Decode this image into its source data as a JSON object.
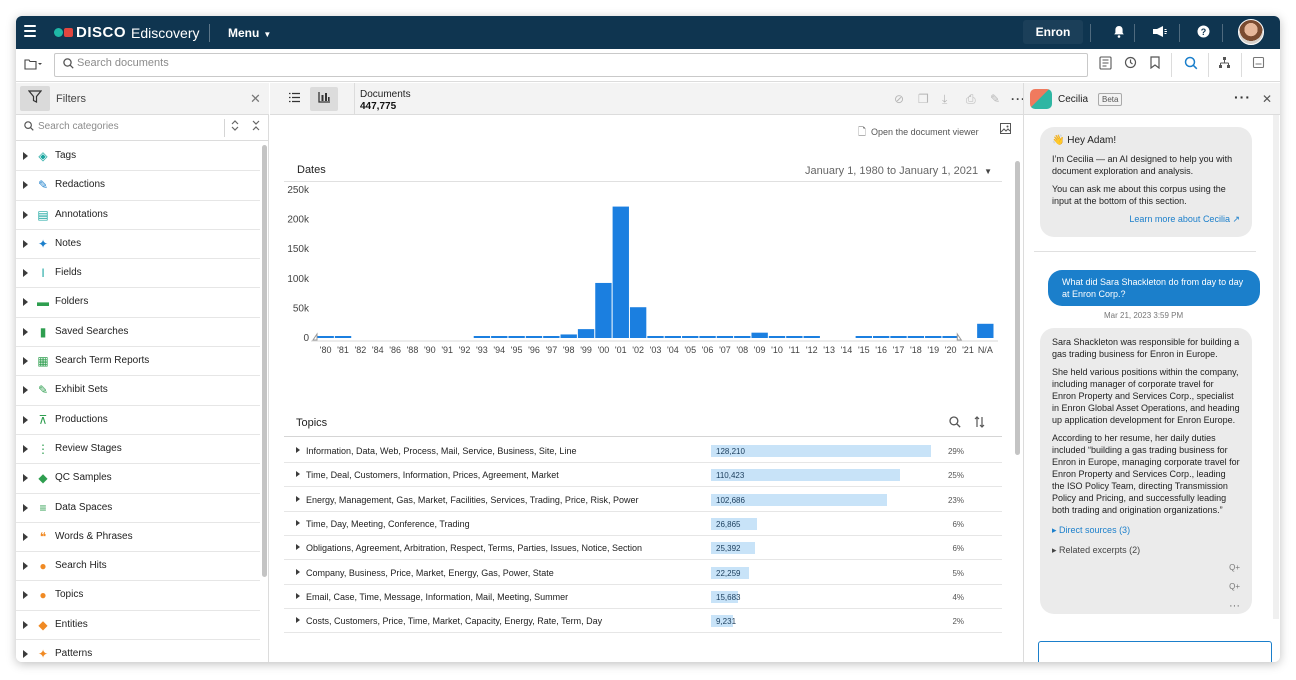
{
  "topbar": {
    "brand": "DISCO",
    "product": "Ediscovery",
    "menu_label": "Menu",
    "workspace": "Enron"
  },
  "search": {
    "placeholder": "Search documents"
  },
  "filters": {
    "title": "Filters",
    "search_placeholder": "Search categories",
    "categories": [
      {
        "label": "Tags",
        "icon": "tag-icon",
        "color": "#1aa6a0"
      },
      {
        "label": "Redactions",
        "icon": "redaction-icon",
        "color": "#1b7fcb"
      },
      {
        "label": "Annotations",
        "icon": "annotation-icon",
        "color": "#1aa6a0"
      },
      {
        "label": "Notes",
        "icon": "pin-icon",
        "color": "#1b7fcb"
      },
      {
        "label": "Fields",
        "icon": "text-cursor-icon",
        "color": "#1aa6a0"
      },
      {
        "label": "Folders",
        "icon": "folder-icon",
        "color": "#2e9e4f"
      },
      {
        "label": "Saved Searches",
        "icon": "bookmark-icon",
        "color": "#2e9e4f"
      },
      {
        "label": "Search Term Reports",
        "icon": "report-icon",
        "color": "#2e9e4f"
      },
      {
        "label": "Exhibit Sets",
        "icon": "exhibit-icon",
        "color": "#2e9e4f"
      },
      {
        "label": "Productions",
        "icon": "stamp-icon",
        "color": "#2e9e4f"
      },
      {
        "label": "Review Stages",
        "icon": "workflow-icon",
        "color": "#2e9e4f"
      },
      {
        "label": "QC Samples",
        "icon": "cube-icon",
        "color": "#2e9e4f"
      },
      {
        "label": "Data Spaces",
        "icon": "database-icon",
        "color": "#2e9e4f"
      },
      {
        "label": "Words & Phrases",
        "icon": "quote-icon",
        "color": "#f08a24"
      },
      {
        "label": "Search Hits",
        "icon": "search-hit-icon",
        "color": "#f08a24"
      },
      {
        "label": "Topics",
        "icon": "lightbulb-icon",
        "color": "#f08a24"
      },
      {
        "label": "Entities",
        "icon": "entity-cube-icon",
        "color": "#f08a24"
      },
      {
        "label": "Patterns",
        "icon": "sparkle-icon",
        "color": "#f08a24"
      }
    ]
  },
  "documents": {
    "label": "Documents",
    "count": "447,775",
    "open_viewer": "Open the document viewer"
  },
  "dates": {
    "title": "Dates",
    "range": "January 1, 1980 to January 1, 2021"
  },
  "chart_data": {
    "type": "bar",
    "title": "Dates",
    "categories": [
      "'80",
      "'81",
      "'82",
      "'84",
      "'86",
      "'88",
      "'90",
      "'91",
      "'92",
      "'93",
      "'94",
      "'95",
      "'96",
      "'97",
      "'98",
      "'99",
      "'00",
      "'01",
      "'02",
      "'03",
      "'04",
      "'05",
      "'06",
      "'07",
      "'08",
      "'09",
      "'10",
      "'11",
      "'12",
      "'13",
      "'14",
      "'15",
      "'16",
      "'17",
      "'18",
      "'19",
      "'20",
      "'21",
      "N/A"
    ],
    "values": [
      3000,
      3000,
      0,
      0,
      0,
      0,
      0,
      0,
      0,
      3000,
      3000,
      3000,
      3000,
      3000,
      6000,
      15000,
      93000,
      222000,
      52000,
      3000,
      3000,
      3000,
      3000,
      3000,
      3000,
      9000,
      3000,
      3000,
      3000,
      0,
      0,
      3000,
      3000,
      3000,
      3000,
      3000,
      3000,
      0,
      24000
    ],
    "yticks": [
      "250k",
      "200k",
      "150k",
      "100k",
      "50k",
      "0"
    ],
    "ylim": [
      0,
      250000
    ],
    "color": "#1b7fe0"
  },
  "topics": {
    "title": "Topics",
    "rows": [
      {
        "name": "Information, Data, Web, Process, Mail, Service, Business, Site, Line",
        "count": "128,210",
        "value": 128210,
        "pct": "29%"
      },
      {
        "name": "Time, Deal, Customers, Information, Prices, Agreement, Market",
        "count": "110,423",
        "value": 110423,
        "pct": "25%"
      },
      {
        "name": "Energy, Management, Gas, Market, Facilities, Services, Trading, Price, Risk, Power",
        "count": "102,686",
        "value": 102686,
        "pct": "23%"
      },
      {
        "name": "Time, Day, Meeting, Conference, Trading",
        "count": "26,865",
        "value": 26865,
        "pct": "6%"
      },
      {
        "name": "Obligations, Agreement, Arbitration, Respect, Terms, Parties, Issues, Notice, Section",
        "count": "25,392",
        "value": 25392,
        "pct": "6%"
      },
      {
        "name": "Company, Business, Price, Market, Energy, Gas, Power, State",
        "count": "22,259",
        "value": 22259,
        "pct": "5%"
      },
      {
        "name": "Email, Case, Time, Message, Information, Mail, Meeting, Summer",
        "count": "15,683",
        "value": 15683,
        "pct": "4%"
      },
      {
        "name": "Costs, Customers, Price, Time, Market, Capacity, Energy, Rate, Term, Day",
        "count": "9,231",
        "value": 9231,
        "pct": "2%"
      }
    ]
  },
  "assistant": {
    "name": "Cecilia",
    "badge": "Beta",
    "greeting": "Hey Adam!",
    "intro": "I’m Cecilia — an AI designed to help you with document exploration and analysis.",
    "usage": "You can ask me about this corpus using the input at the bottom of this section.",
    "learn_more": "Learn more about Cecilia ↗",
    "user_question": "What did Sara Shackleton do from day to day at Enron Corp.?",
    "timestamp": "Mar 21, 2023  3:59 PM",
    "answer_p1": "Sara Shackleton was responsible for building a gas trading business for Enron in Europe.",
    "answer_p2": "She held various positions within the company, including manager of corporate travel for Enron Property and Services Corp., specialist in Enron Global Asset Operations, and heading up application development for Enron Europe.",
    "answer_p3": "According to her resume, her daily duties included “building a gas trading business for Enron in Europe, managing corporate travel for Enron Property and Services Corp., leading the ISO Policy Team, directing Transmission Policy and Pricing, and successfully leading both trading and origination organizations.”",
    "direct_sources": "Direct sources (3)",
    "related_excerpts": "Related excerpts (2)"
  }
}
